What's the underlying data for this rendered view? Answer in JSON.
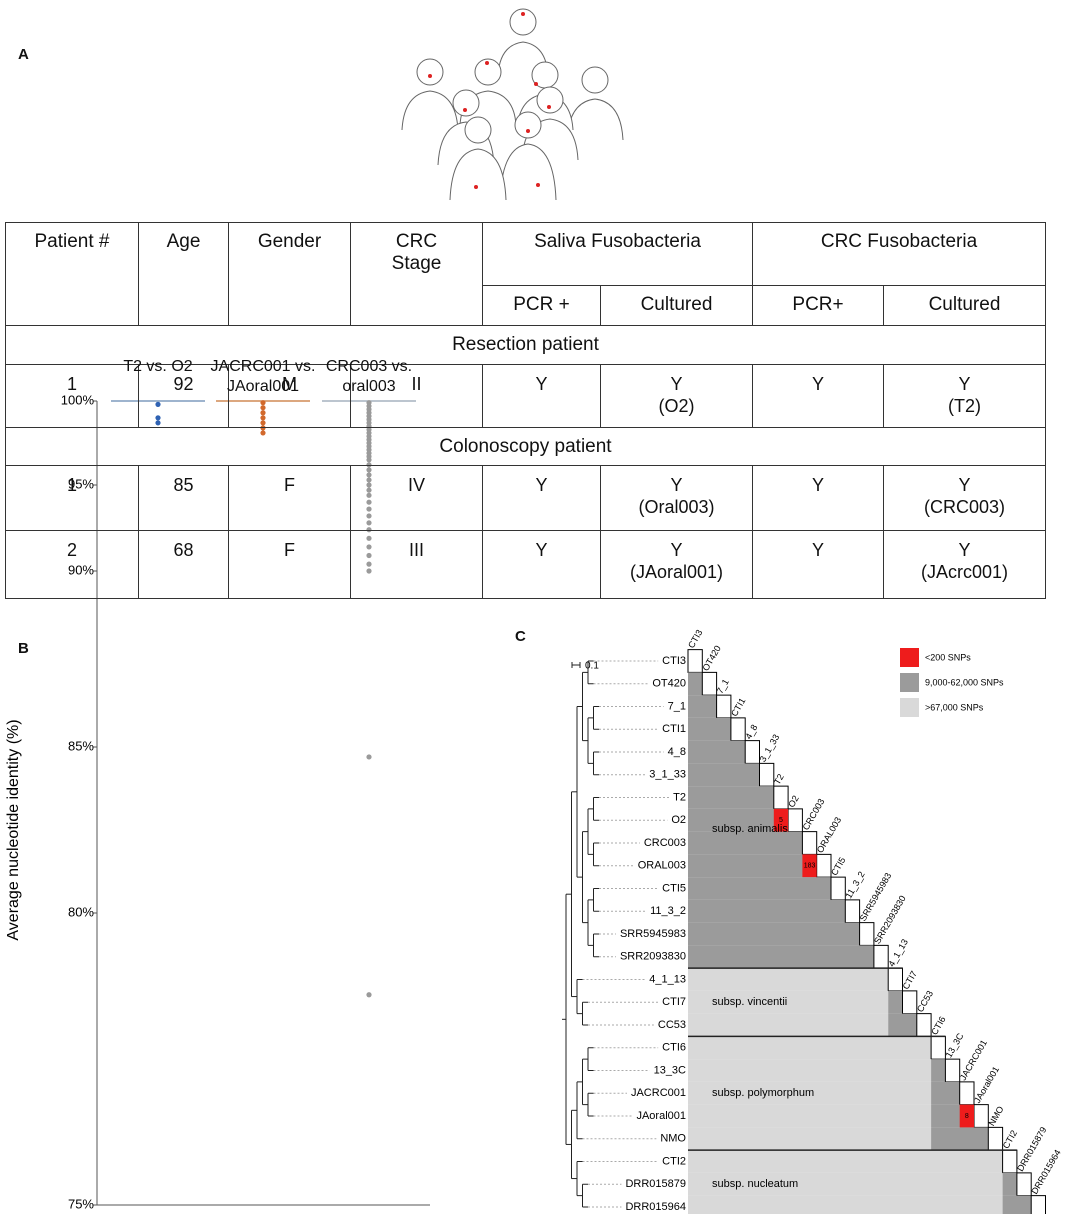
{
  "panel_labels": [
    "A",
    "B",
    "C"
  ],
  "table": {
    "header": [
      "Patient #",
      "Age",
      "Gender",
      "CRC Stage",
      "Saliva Fusobacteria",
      "CRC Fusobacteria"
    ],
    "subheader": [
      "PCR +",
      "Cultured",
      "PCR+",
      "Cultured"
    ],
    "sections": [
      {
        "title": "Resection patient",
        "rows": [
          [
            1,
            92,
            "M",
            "II",
            "Y",
            [
              "Y",
              "(O2)"
            ],
            "Y",
            [
              "Y",
              "(T2)"
            ]
          ]
        ]
      },
      {
        "title": "Colonoscopy patient",
        "rows": [
          [
            1,
            85,
            "F",
            "IV",
            "Y",
            [
              "Y",
              "(Oral003)"
            ],
            "Y",
            [
              "Y",
              "(CRC003)"
            ]
          ],
          [
            2,
            68,
            "F",
            "III",
            "Y",
            [
              "Y",
              "(JAoral001)"
            ],
            "Y",
            [
              "Y",
              "(JAcrc001)"
            ]
          ]
        ]
      }
    ]
  },
  "chart_data": {
    "type": "strip",
    "ylabel": "Average nucleotide identity (%)",
    "ylim": [
      75,
      100
    ],
    "yticks": [
      {
        "value": 100,
        "label": "100%"
      },
      {
        "value": 95,
        "label": "95%"
      },
      {
        "value": 90,
        "label": "90%"
      },
      {
        "value": 85,
        "label": "85%"
      },
      {
        "value": 80,
        "label": "80%"
      },
      {
        "value": 75,
        "label": "75%"
      }
    ],
    "series": [
      {
        "name": "T2 vs. O2",
        "color": "#2f62b3",
        "line_color": "#7f9cbd",
        "values": [
          99.8,
          99.0,
          98.7
        ]
      },
      {
        "name": "JACRC001 vs. JAoral001",
        "color": "#d2692c",
        "line_color": "#d08a55",
        "values": [
          99.9,
          99.6,
          99.3,
          99.0,
          98.7,
          98.4,
          98.1
        ]
      },
      {
        "name": "CRC003 vs. oral003",
        "color": "#9a9a9a",
        "line_color": "#a6b2bf",
        "values": [
          99.9,
          99.7,
          99.5,
          99.3,
          99.1,
          98.9,
          98.7,
          98.5,
          98.3,
          98.1,
          97.9,
          97.7,
          97.5,
          97.3,
          97.1,
          96.9,
          96.7,
          96.5,
          96.2,
          95.9,
          95.6,
          95.3,
          95.0,
          94.7,
          94.4,
          94.0,
          93.6,
          93.2,
          92.8,
          92.4,
          91.9,
          91.4,
          90.9,
          90.4,
          90.0,
          84.7,
          78.6
        ]
      }
    ]
  },
  "tree": {
    "scale_label": "0.1",
    "legend": [
      {
        "label": "<200 SNPs",
        "color": "#ee1c1c"
      },
      {
        "label": "9,000-62,000 SNPs",
        "color": "#9b9b9b"
      },
      {
        "label": ">67,000 SNPs",
        "color": "#d9d9d9"
      }
    ],
    "groups": [
      {
        "label": "subsp. animalis",
        "leaves": [
          "CTI3",
          "OT420",
          "7_1",
          "CTI1",
          "4_8",
          "3_1_33",
          "T2",
          "O2",
          "CRC003",
          "ORAL003",
          "CTI5",
          "11_3_2",
          "SRR5945983",
          "SRR2093830"
        ]
      },
      {
        "label": "subsp. vincentii",
        "leaves": [
          "4_1_13",
          "CTI7",
          "CC53"
        ]
      },
      {
        "label": "subsp. polymorphum",
        "leaves": [
          "CTI6",
          "13_3C",
          "JACRC001",
          "JAoral001",
          "NMO"
        ]
      },
      {
        "label": "subsp. nucleatum",
        "leaves": [
          "CTI2",
          "DRR015879",
          "DRR015964"
        ]
      }
    ],
    "snp_cells": [
      5,
      183,
      8
    ]
  }
}
